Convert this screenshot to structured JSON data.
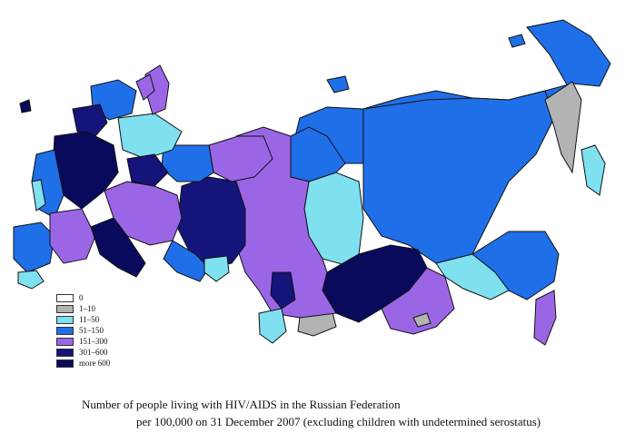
{
  "legend": {
    "items": [
      {
        "label": "0",
        "color": "#ffffff"
      },
      {
        "label": "1–10",
        "color": "#b3b3b3"
      },
      {
        "label": "11–50",
        "color": "#7fe0f0"
      },
      {
        "label": "51–150",
        "color": "#1f6fe8"
      },
      {
        "label": "151–300",
        "color": "#9b66e6"
      },
      {
        "label": "301–600",
        "color": "#14147a"
      },
      {
        "label": "more 600",
        "color": "#0a0a5c"
      }
    ]
  },
  "caption": {
    "line1": "Number of people living with HIV/AIDS in the Russian Federation",
    "line2": "per 100,000 on 31 December 2007 (excluding children with undetermined serostatus)"
  }
}
